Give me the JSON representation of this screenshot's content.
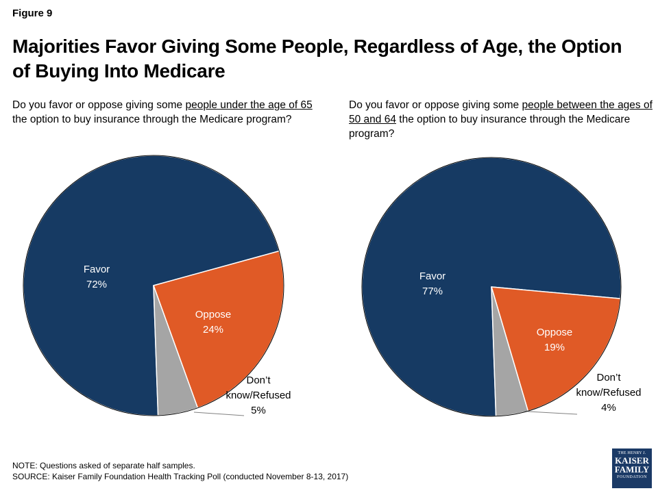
{
  "figure_label": "Figure 9",
  "title": "Majorities Favor Giving Some People, Regardless of Age, the Option of Buying Into Medicare",
  "charts": [
    {
      "q_pre": "Do you favor or oppose giving some ",
      "q_underlined": "people under the age of 65",
      "q_post": " the option to buy insurance through the Medicare program?"
    },
    {
      "q_pre": "Do you favor or oppose giving some ",
      "q_underlined": "people between the ages of 50 and 64",
      "q_post": " the option to buy insurance through the Medicare program?"
    }
  ],
  "chart_data": [
    {
      "type": "pie",
      "title": "",
      "slices": [
        {
          "label": "Favor",
          "value": 72,
          "display": "72%",
          "color": "#163a63",
          "label_lines": [
            "Favor",
            "72%"
          ],
          "label_color": "#ffffff"
        },
        {
          "label": "Oppose",
          "value": 24,
          "display": "24%",
          "color": "#e05a26",
          "label_lines": [
            "Oppose",
            "24%"
          ],
          "label_color": "#ffffff"
        },
        {
          "label": "Don’t know/Refused",
          "value": 5,
          "display": "5%",
          "color": "#a5a5a5",
          "label_lines": [
            "Don’t",
            "know/Refused",
            "5%"
          ],
          "label_color": "#000000"
        }
      ]
    },
    {
      "type": "pie",
      "title": "",
      "slices": [
        {
          "label": "Favor",
          "value": 77,
          "display": "77%",
          "color": "#163a63",
          "label_lines": [
            "Favor",
            "77%"
          ],
          "label_color": "#ffffff"
        },
        {
          "label": "Oppose",
          "value": 19,
          "display": "19%",
          "color": "#e05a26",
          "label_lines": [
            "Oppose",
            "19%"
          ],
          "label_color": "#ffffff"
        },
        {
          "label": "Don’t know/Refused",
          "value": 4,
          "display": "4%",
          "color": "#a5a5a5",
          "label_lines": [
            "Don’t",
            "know/Refused",
            "4%"
          ],
          "label_color": "#000000"
        }
      ]
    }
  ],
  "note": "NOTE: Questions asked of separate half samples.",
  "source": "SOURCE: Kaiser Family Foundation Health Tracking Poll (conducted November 8-13, 2017)",
  "logo": {
    "line1": "THE HENRY J.",
    "line2": "KAISER",
    "line3": "FAMILY",
    "line4": "FOUNDATION"
  }
}
